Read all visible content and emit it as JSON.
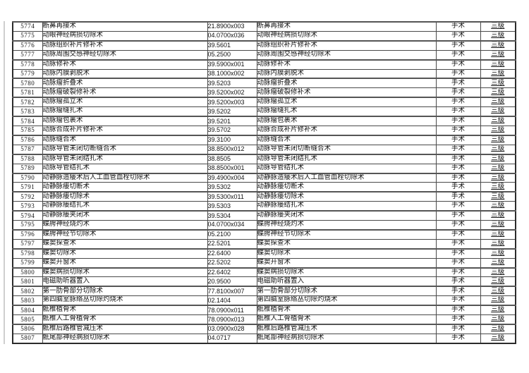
{
  "colors": {
    "background": "#ffffff",
    "grid_border": "#4a4a4a",
    "outer_border": "#2b2b2b",
    "text": "#111111",
    "margin_line": "#cfcfcf"
  },
  "table": {
    "rows": [
      [
        "5774",
        "断鼻再接术",
        "21.8900x003",
        "断鼻再接术",
        "手术",
        "三级"
      ],
      [
        "5775",
        "动眼神经病损切除术",
        "04.0700x036",
        "动眼神经病损切除术",
        "手术",
        "三级"
      ],
      [
        "5776",
        "动脉组织补片修补术",
        "39.5601",
        "动脉组织补片修补术",
        "手术",
        "三级"
      ],
      [
        "5777",
        "动脉周围交感神经切除术",
        "05.2500",
        "动脉周围交感神经切除术",
        "手术",
        "三级"
      ],
      [
        "5778",
        "动脉修补术",
        "39.5900x001",
        "动脉修补术",
        "手术",
        "三级"
      ],
      [
        "5779",
        "动脉内膜剥脱术",
        "38.1000x002",
        "动脉内膜剥脱术",
        "手术",
        "三级"
      ],
      [
        "5780",
        "动脉瘤折叠术",
        "39.5203",
        "动脉瘤折叠术",
        "手术",
        "三级"
      ],
      [
        "5781",
        "动脉瘤破裂修补术",
        "39.5200x002",
        "动脉瘤破裂修补术",
        "手术",
        "三级"
      ],
      [
        "5782",
        "动脉瘤孤立术",
        "39.5200x003",
        "动脉瘤孤立术",
        "手术",
        "三级"
      ],
      [
        "5783",
        "动脉瘤缝扎术",
        "39.5202",
        "动脉瘤缝扎术",
        "手术",
        "三级"
      ],
      [
        "5784",
        "动脉瘤包裹术",
        "39.5201",
        "动脉瘤包裹术",
        "手术",
        "三级"
      ],
      [
        "5785",
        "动脉合成补片修补术",
        "39.5702",
        "动脉合成补片修补术",
        "手术",
        "三级"
      ],
      [
        "5786",
        "动脉缝合术",
        "39.3100",
        "动脉缝合术",
        "手术",
        "三级"
      ],
      [
        "5787",
        "动脉导管未闭切断缝合术",
        "38.8500x012",
        "动脉导管未闭切断缝合术",
        "手术",
        "三级"
      ],
      [
        "5788",
        "动脉导管未闭结扎术",
        "38.8505",
        "动脉导管未闭结扎术",
        "手术",
        "三级"
      ],
      [
        "5789",
        "动脉导管结扎术",
        "38.8500x001",
        "动脉导管结扎术",
        "手术",
        "三级"
      ],
      [
        "5790",
        "动静脉造瘘术后人工血管血栓切除术",
        "39.4900x004",
        "动静脉造瘘术后人工血管血栓切除术",
        "手术",
        "三级"
      ],
      [
        "5791",
        "动静脉瘘切断术",
        "39.5302",
        "动静脉瘘切断术",
        "手术",
        "三级"
      ],
      [
        "5792",
        "动静脉瘘切除术",
        "39.5300x011",
        "动静脉瘘切除术",
        "手术",
        "三级"
      ],
      [
        "5793",
        "动静脉瘘结扎术",
        "39.5303",
        "动静脉瘘结扎术",
        "手术",
        "三级"
      ],
      [
        "5794",
        "动静脉瘘夹闭术",
        "39.5304",
        "动静脉瘘夹闭术",
        "手术",
        "三级"
      ],
      [
        "5795",
        "蝶腭神经烧灼术",
        "04.0700x034",
        "蝶腭神经烧灼术",
        "手术",
        "三级"
      ],
      [
        "5796",
        "蝶腭神经节切除术",
        "05.2100",
        "蝶腭神经节切除术",
        "手术",
        "三级"
      ],
      [
        "5797",
        "蝶窦探查术",
        "22.5201",
        "蝶窦探查术",
        "手术",
        "三级"
      ],
      [
        "5798",
        "蝶窦切除术",
        "22.6400",
        "蝶窦切除术",
        "手术",
        "三级"
      ],
      [
        "5799",
        "蝶窦开窗术",
        "22.5202",
        "蝶窦开窗术",
        "手术",
        "三级"
      ],
      [
        "5800",
        "蝶窦病损切除术",
        "22.6402",
        "蝶窦病损切除术",
        "手术",
        "三级"
      ],
      [
        "5801",
        "电磁助听器置入",
        "20.9500",
        "电磁助听器置入",
        "手术",
        "三级"
      ],
      [
        "5802",
        "第一肋骨部分切除术",
        "77.8100x007",
        "第一肋骨部分切除术",
        "手术",
        "三级"
      ],
      [
        "5803",
        "第四脑室脉络丛切除灼烧术",
        "02.1404",
        "第四脑室脉络丛切除灼烧术",
        "手术",
        "三级"
      ],
      [
        "5804",
        "骶椎植骨术",
        "78.0900x011",
        "骶椎植骨术",
        "手术",
        "三级"
      ],
      [
        "5805",
        "骶椎人工骨植骨术",
        "78.0900x013",
        "骶椎人工骨植骨术",
        "手术",
        "三级"
      ],
      [
        "5806",
        "骶椎后路椎管减压术",
        "03.0900x028",
        "骶椎后路椎管减压术",
        "手术",
        "三级"
      ],
      [
        "5807",
        "骶尾部神经病损切除术",
        "04.0717",
        "骶尾部神经病损切除术",
        "手术",
        "三级"
      ]
    ]
  }
}
